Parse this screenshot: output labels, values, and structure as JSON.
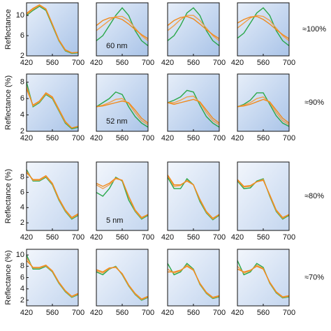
{
  "chart_data": [
    {
      "type": "line",
      "ylabel": "Reflectance",
      "x": [
        420,
        455,
        490,
        525,
        560,
        595,
        630,
        665,
        700
      ],
      "xlim": [
        420,
        700
      ],
      "xticks": [
        420,
        560,
        700
      ],
      "ylim": [
        2,
        12.5
      ],
      "yticks": [
        2,
        6,
        10
      ],
      "series": [
        {
          "color": "#2aa84a",
          "values": [
            10,
            11,
            11.8,
            11,
            8,
            5,
            3,
            2.5,
            2.6
          ]
        },
        {
          "color": "#f0a04a",
          "values": [
            10.2,
            11.2,
            12,
            11.2,
            8.2,
            5.1,
            3.1,
            2.6,
            2.7
          ]
        },
        {
          "color": "#f08a1c",
          "values": [
            10.4,
            11.4,
            12.1,
            11.3,
            8.3,
            5.2,
            3.2,
            2.6,
            2.7
          ]
        }
      ]
    },
    {
      "type": "line",
      "annotation": "60 nm",
      "x": [
        420,
        455,
        490,
        525,
        560,
        595,
        630,
        665,
        700
      ],
      "xlim": [
        420,
        700
      ],
      "xticks": [
        420,
        560,
        700
      ],
      "ylim": [
        2,
        12.5
      ],
      "series": [
        {
          "color": "#2aa84a",
          "values": [
            5,
            6,
            8,
            10,
            11.5,
            10,
            7,
            5,
            4
          ]
        },
        {
          "color": "#f0a04a",
          "values": [
            7,
            8,
            9,
            9.8,
            9.8,
            9,
            7.5,
            6,
            5
          ]
        },
        {
          "color": "#f08a1c",
          "values": [
            8,
            9,
            9.5,
            9.6,
            9.2,
            8.3,
            7.2,
            6.2,
            5.4
          ]
        }
      ]
    },
    {
      "type": "line",
      "x": [
        420,
        455,
        490,
        525,
        560,
        595,
        630,
        665,
        700
      ],
      "xlim": [
        420,
        700
      ],
      "xticks": [
        420,
        560,
        700
      ],
      "ylim": [
        2,
        12.5
      ],
      "series": [
        {
          "color": "#2aa84a",
          "values": [
            5,
            6,
            8,
            10.5,
            11.5,
            10,
            7,
            5,
            4
          ]
        },
        {
          "color": "#f0a04a",
          "values": [
            7,
            8,
            9.2,
            10,
            10,
            9,
            7.5,
            6,
            5
          ]
        },
        {
          "color": "#f08a1c",
          "values": [
            8,
            9,
            9.6,
            9.8,
            9.3,
            8.3,
            7.2,
            6.2,
            5.4
          ]
        }
      ]
    },
    {
      "type": "line",
      "row_label": "≈100%",
      "x": [
        420,
        455,
        490,
        525,
        560,
        595,
        630,
        665,
        700
      ],
      "xlim": [
        420,
        700
      ],
      "xticks": [
        420,
        560,
        700
      ],
      "ylim": [
        2,
        12.5
      ],
      "series": [
        {
          "color": "#2aa84a",
          "values": [
            5.5,
            6.5,
            8.5,
            10.5,
            11.5,
            10,
            7,
            5,
            4
          ]
        },
        {
          "color": "#f0a04a",
          "values": [
            7.5,
            8.5,
            9.5,
            10,
            9.8,
            9,
            7.5,
            6,
            5
          ]
        },
        {
          "color": "#f08a1c",
          "values": [
            8.5,
            9.2,
            9.7,
            9.8,
            9.2,
            8.3,
            7.2,
            6.2,
            5.4
          ]
        }
      ]
    },
    {
      "type": "line",
      "ylabel": "Reflectance (%)",
      "x": [
        420,
        455,
        490,
        525,
        560,
        595,
        630,
        665,
        700
      ],
      "xlim": [
        420,
        700
      ],
      "xticks": [
        420,
        560,
        700
      ],
      "ylim": [
        2,
        9
      ],
      "yticks": [
        2,
        4,
        6,
        8
      ],
      "series": [
        {
          "color": "#2aa84a",
          "values": [
            8,
            5,
            5.5,
            6.5,
            6,
            4.5,
            3,
            2.3,
            2.5
          ]
        },
        {
          "color": "#f0a04a",
          "values": [
            7.5,
            5.1,
            5.6,
            6.6,
            6.1,
            4.6,
            3.1,
            2.4,
            2.6
          ]
        },
        {
          "color": "#f08a1c",
          "values": [
            7.2,
            5.2,
            5.7,
            6.7,
            6.2,
            4.7,
            3.2,
            2.4,
            2.6
          ]
        }
      ]
    },
    {
      "type": "line",
      "annotation": "52 nm",
      "x": [
        420,
        455,
        490,
        525,
        560,
        595,
        630,
        665,
        700
      ],
      "xlim": [
        420,
        700
      ],
      "xticks": [
        420,
        560,
        700
      ],
      "ylim": [
        2,
        9
      ],
      "series": [
        {
          "color": "#2aa84a",
          "values": [
            5,
            5.5,
            6,
            6.8,
            6.5,
            5,
            3.8,
            3,
            2.5
          ]
        },
        {
          "color": "#f0a04a",
          "values": [
            5,
            5.2,
            5.5,
            5.9,
            6,
            5.4,
            4.3,
            3.3,
            2.8
          ]
        },
        {
          "color": "#f08a1c",
          "values": [
            5,
            5.1,
            5.3,
            5.5,
            5.7,
            5.5,
            4.6,
            3.6,
            3
          ]
        }
      ]
    },
    {
      "type": "line",
      "x": [
        420,
        455,
        490,
        525,
        560,
        595,
        630,
        665,
        700
      ],
      "xlim": [
        420,
        700
      ],
      "xticks": [
        420,
        560,
        700
      ],
      "ylim": [
        2,
        9
      ],
      "series": [
        {
          "color": "#2aa84a",
          "values": [
            5.5,
            5.8,
            6.2,
            7,
            6.8,
            5.2,
            3.8,
            3,
            2.5
          ]
        },
        {
          "color": "#f0a04a",
          "values": [
            5.5,
            5.5,
            5.8,
            6.2,
            6.3,
            5.5,
            4.3,
            3.3,
            2.8
          ]
        },
        {
          "color": "#f08a1c",
          "values": [
            5.5,
            5.3,
            5.5,
            5.7,
            5.9,
            5.6,
            4.6,
            3.6,
            3
          ]
        }
      ]
    },
    {
      "type": "line",
      "row_label": "≈90%",
      "x": [
        420,
        455,
        490,
        525,
        560,
        595,
        630,
        665,
        700
      ],
      "xlim": [
        420,
        700
      ],
      "xticks": [
        420,
        560,
        700
      ],
      "ylim": [
        2,
        9
      ],
      "series": [
        {
          "color": "#2aa84a",
          "values": [
            5,
            5.3,
            5.8,
            6.7,
            6.7,
            5.3,
            3.9,
            3,
            2.6
          ]
        },
        {
          "color": "#f0a04a",
          "values": [
            5,
            5.2,
            5.5,
            6,
            6.2,
            5.5,
            4.3,
            3.3,
            2.8
          ]
        },
        {
          "color": "#f08a1c",
          "values": [
            5,
            5.1,
            5.3,
            5.6,
            5.9,
            5.6,
            4.6,
            3.6,
            3
          ]
        }
      ]
    },
    {
      "type": "line",
      "ylabel": "Reflectance (%)",
      "x": [
        420,
        455,
        490,
        525,
        560,
        595,
        630,
        665,
        700
      ],
      "xlim": [
        420,
        700
      ],
      "xticks": [
        420,
        560,
        700
      ],
      "ylim": [
        1,
        10
      ],
      "yticks": [
        2,
        4,
        6,
        8
      ],
      "series": [
        {
          "color": "#2aa84a",
          "values": [
            9,
            7.5,
            7.5,
            8,
            7,
            5,
            3.5,
            2.5,
            3
          ]
        },
        {
          "color": "#f0a04a",
          "values": [
            8.8,
            7.6,
            7.6,
            8.1,
            7.1,
            5.1,
            3.6,
            2.6,
            3.1
          ]
        },
        {
          "color": "#f08a1c",
          "values": [
            8.6,
            7.7,
            7.7,
            8.2,
            7.2,
            5.2,
            3.7,
            2.7,
            3.2
          ]
        }
      ]
    },
    {
      "type": "line",
      "annotation": "5 nm",
      "x": [
        420,
        455,
        490,
        525,
        560,
        595,
        630,
        665,
        700
      ],
      "xlim": [
        420,
        700
      ],
      "xticks": [
        420,
        560,
        700
      ],
      "ylim": [
        1,
        10
      ],
      "series": [
        {
          "color": "#2aa84a",
          "values": [
            6,
            5.5,
            6.5,
            8,
            7.5,
            5,
            3.5,
            2.5,
            3
          ]
        },
        {
          "color": "#f0a04a",
          "values": [
            7,
            6.5,
            7,
            7.8,
            7.6,
            5.4,
            3.6,
            2.6,
            3.1
          ]
        },
        {
          "color": "#f08a1c",
          "values": [
            7.2,
            6.8,
            7.2,
            7.9,
            7.6,
            5.5,
            3.7,
            2.7,
            3.1
          ]
        }
      ]
    },
    {
      "type": "line",
      "x": [
        420,
        455,
        490,
        525,
        560,
        595,
        630,
        665,
        700
      ],
      "xlim": [
        420,
        700
      ],
      "xticks": [
        420,
        560,
        700
      ],
      "ylim": [
        1,
        10
      ],
      "series": [
        {
          "color": "#2aa84a",
          "values": [
            8,
            6.5,
            6.5,
            7.8,
            7,
            4.8,
            3.3,
            2.4,
            3
          ]
        },
        {
          "color": "#f0a04a",
          "values": [
            8.2,
            6.8,
            6.9,
            7.6,
            7,
            5,
            3.4,
            2.5,
            3.1
          ]
        },
        {
          "color": "#f08a1c",
          "values": [
            8.3,
            7,
            7,
            7.5,
            7,
            5.1,
            3.5,
            2.6,
            3.1
          ]
        }
      ]
    },
    {
      "type": "line",
      "row_label": "≈80%",
      "x": [
        420,
        455,
        490,
        525,
        560,
        595,
        630,
        665,
        700
      ],
      "xlim": [
        420,
        700
      ],
      "xticks": [
        420,
        560,
        700
      ],
      "ylim": [
        1,
        10
      ],
      "series": [
        {
          "color": "#2aa84a",
          "values": [
            7.5,
            6.5,
            6.6,
            7.5,
            7.8,
            5.5,
            3.5,
            2.5,
            3
          ]
        },
        {
          "color": "#f0a04a",
          "values": [
            7.6,
            6.7,
            6.8,
            7.4,
            7.7,
            5.6,
            3.6,
            2.6,
            3.1
          ]
        },
        {
          "color": "#f08a1c",
          "values": [
            7.7,
            6.8,
            6.9,
            7.4,
            7.6,
            5.7,
            3.7,
            2.7,
            3.1
          ]
        }
      ]
    },
    {
      "type": "line",
      "ylabel": "Reflectance (%)",
      "x": [
        420,
        455,
        490,
        525,
        560,
        595,
        630,
        665,
        700
      ],
      "xlim": [
        420,
        700
      ],
      "xticks": [
        420,
        560,
        700
      ],
      "ylim": [
        1,
        11
      ],
      "yticks": [
        2,
        4,
        6,
        8,
        10
      ],
      "series": [
        {
          "color": "#2aa84a",
          "values": [
            10,
            7.5,
            7.5,
            8,
            7,
            5,
            3.5,
            2.5,
            3
          ]
        },
        {
          "color": "#f0a04a",
          "values": [
            9.5,
            7.7,
            7.7,
            8.1,
            7.1,
            5.1,
            3.6,
            2.6,
            3.1
          ]
        },
        {
          "color": "#f08a1c",
          "values": [
            9,
            7.8,
            7.8,
            8.2,
            7.2,
            5.2,
            3.7,
            2.7,
            3.2
          ]
        }
      ]
    },
    {
      "type": "line",
      "x": [
        420,
        455,
        490,
        525,
        560,
        595,
        630,
        665,
        700
      ],
      "xlim": [
        420,
        700
      ],
      "xticks": [
        420,
        560,
        700
      ],
      "ylim": [
        1,
        11
      ],
      "series": [
        {
          "color": "#2aa84a",
          "values": [
            7,
            6.5,
            7.5,
            8,
            6.5,
            4.5,
            3,
            2,
            2.5
          ]
        },
        {
          "color": "#f0a04a",
          "values": [
            7.2,
            6.8,
            7.6,
            7.9,
            6.6,
            4.6,
            3.1,
            2.1,
            2.6
          ]
        },
        {
          "color": "#f08a1c",
          "values": [
            7.4,
            7,
            7.7,
            7.8,
            6.7,
            4.7,
            3.2,
            2.2,
            2.7
          ]
        }
      ]
    },
    {
      "type": "line",
      "x": [
        420,
        455,
        490,
        525,
        560,
        595,
        630,
        665,
        700
      ],
      "xlim": [
        420,
        700
      ],
      "xticks": [
        420,
        560,
        700
      ],
      "ylim": [
        1,
        11
      ],
      "series": [
        {
          "color": "#2aa84a",
          "values": [
            8.5,
            6.5,
            7,
            8.5,
            7.5,
            4.8,
            3.2,
            2.3,
            2.6
          ]
        },
        {
          "color": "#f0a04a",
          "values": [
            7.5,
            6.8,
            7.2,
            8.2,
            7.4,
            4.9,
            3.3,
            2.4,
            2.7
          ]
        },
        {
          "color": "#f08a1c",
          "values": [
            7,
            7,
            7.3,
            8,
            7.3,
            5,
            3.4,
            2.5,
            2.8
          ]
        }
      ]
    },
    {
      "type": "line",
      "row_label": "≈70%",
      "x": [
        420,
        455,
        490,
        525,
        560,
        595,
        630,
        665,
        700
      ],
      "xlim": [
        420,
        700
      ],
      "xticks": [
        420,
        560,
        700
      ],
      "ylim": [
        1,
        11
      ],
      "series": [
        {
          "color": "#2aa84a",
          "values": [
            9,
            6.5,
            7,
            8.5,
            7.8,
            5,
            3.3,
            2.4,
            2.6
          ]
        },
        {
          "color": "#f0a04a",
          "values": [
            8,
            6.8,
            7.2,
            8.2,
            7.6,
            5.1,
            3.4,
            2.5,
            2.7
          ]
        },
        {
          "color": "#f08a1c",
          "values": [
            7.5,
            7,
            7.3,
            8,
            7.5,
            5.2,
            3.5,
            2.6,
            2.8
          ]
        }
      ]
    }
  ]
}
